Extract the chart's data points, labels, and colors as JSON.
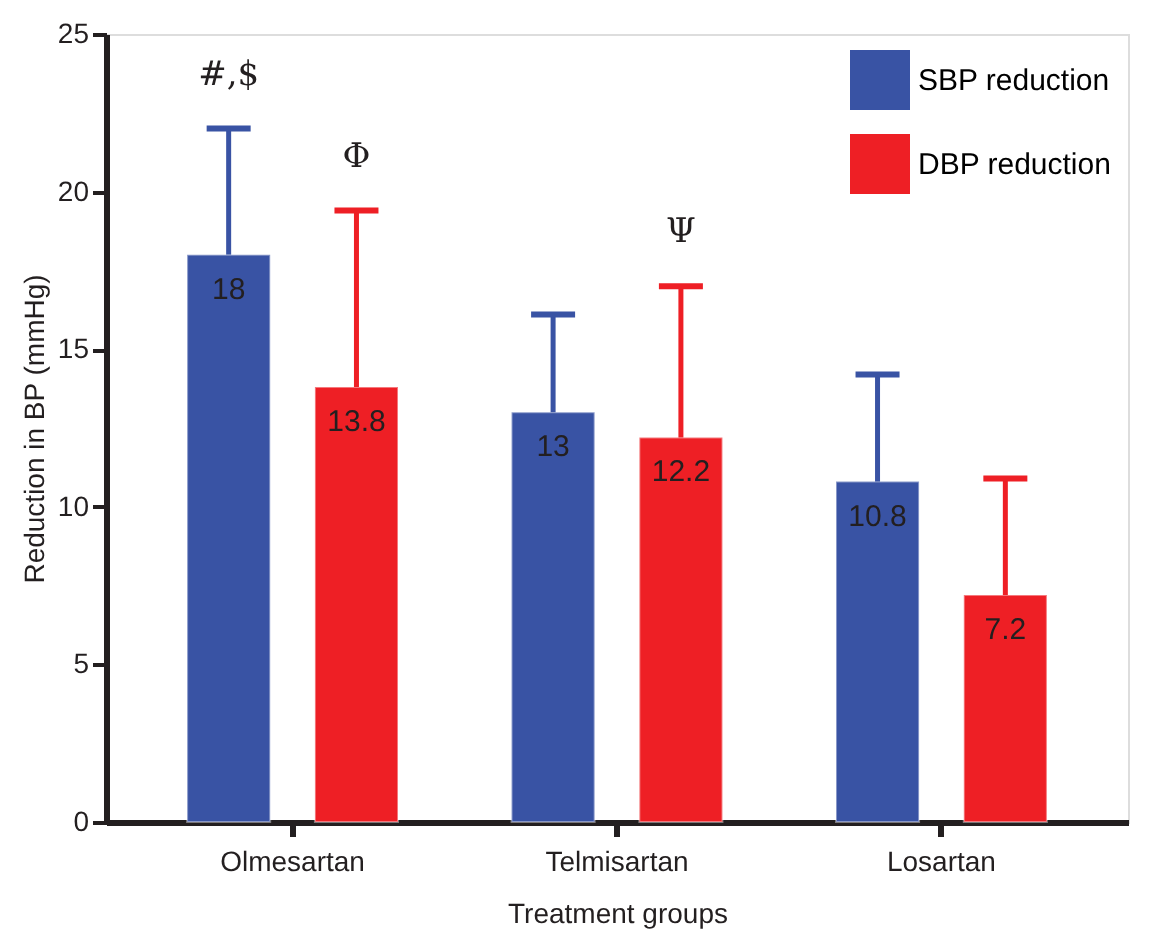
{
  "chart_data": {
    "type": "bar",
    "xlabel": "Treatment groups",
    "ylabel": "Reduction in BP (mmHg)",
    "categories": [
      "Olmesartan",
      "Telmisartan",
      "Losartan"
    ],
    "series": [
      {
        "name": "SBP reduction",
        "color": "#3953a4",
        "values": [
          18,
          13,
          10.8
        ],
        "errors": [
          [
            18,
            22
          ],
          [
            13,
            16.1
          ],
          [
            10.8,
            14.2
          ]
        ]
      },
      {
        "name": "DBP reduction",
        "color": "#ee1f25",
        "values": [
          13.8,
          12.2,
          7.2
        ],
        "errors": [
          [
            13.8,
            19.4
          ],
          [
            12.2,
            17
          ],
          [
            7.2,
            10.9
          ]
        ]
      }
    ],
    "ylim": [
      0,
      25
    ],
    "yticks": [
      0,
      5,
      10,
      15,
      20,
      25
    ],
    "data_labels": true,
    "grid": false,
    "legend": "top right",
    "annotations": [
      "#,$",
      "Φ",
      "Ψ"
    ]
  }
}
